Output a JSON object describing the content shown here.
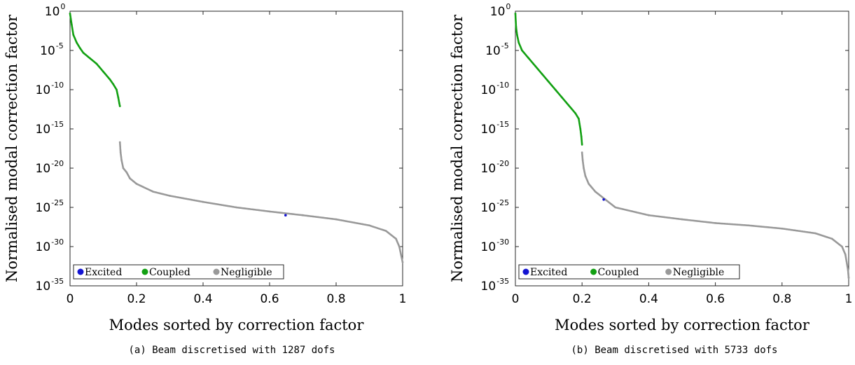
{
  "chart_data": [
    {
      "type": "scatter",
      "panel": "a",
      "caption": "(a) Beam discretised with 1287 dofs",
      "xlabel": "Modes sorted by correction factor",
      "ylabel": "Normalised modal correction factor",
      "xlim": [
        0,
        1
      ],
      "ylim_exponent": [
        -35,
        0
      ],
      "yscale": "log",
      "x_ticks": [
        "0",
        "0.2",
        "0.4",
        "0.6",
        "0.8",
        "1"
      ],
      "y_tick_base": "10",
      "y_tick_exponents": [
        "0",
        "-5",
        "-10",
        "-15",
        "-20",
        "-25",
        "-30",
        "-35"
      ],
      "legend_position": "bottom-left",
      "series": [
        {
          "name": "Excited",
          "color": "#1414d2",
          "points": [
            [
              0.648,
              1e-26
            ]
          ]
        },
        {
          "name": "Coupled",
          "color": "#12a012",
          "points": [
            [
              0.0,
              0.5
            ],
            [
              0.005,
              0.02
            ],
            [
              0.01,
              0.001
            ],
            [
              0.02,
              0.0001
            ],
            [
              0.03,
              2e-05
            ],
            [
              0.04,
              5e-06
            ],
            [
              0.06,
              1e-06
            ],
            [
              0.08,
              2e-07
            ],
            [
              0.1,
              2e-08
            ],
            [
              0.12,
              2e-09
            ],
            [
              0.13,
              5e-10
            ],
            [
              0.14,
              1e-10
            ],
            [
              0.145,
              1e-11
            ],
            [
              0.148,
              2e-12
            ],
            [
              0.15,
              8e-13
            ]
          ]
        },
        {
          "name": "Negligible",
          "color": "#999999",
          "points": [
            [
              0.15,
              2e-17
            ],
            [
              0.152,
              1e-18
            ],
            [
              0.155,
              1e-19
            ],
            [
              0.16,
              1e-20
            ],
            [
              0.17,
              3e-21
            ],
            [
              0.18,
              5e-22
            ],
            [
              0.2,
              1e-22
            ],
            [
              0.25,
              1e-23
            ],
            [
              0.3,
              3e-24
            ],
            [
              0.4,
              5e-25
            ],
            [
              0.5,
              1e-25
            ],
            [
              0.6,
              3e-26
            ],
            [
              0.7,
              1e-26
            ],
            [
              0.8,
              3e-27
            ],
            [
              0.9,
              5e-28
            ],
            [
              0.95,
              1e-28
            ],
            [
              0.98,
              1e-29
            ],
            [
              0.99,
              1e-30
            ],
            [
              1.0,
              1e-32
            ]
          ]
        }
      ]
    },
    {
      "type": "scatter",
      "panel": "b",
      "caption": "(b) Beam discretised with 5733 dofs",
      "xlabel": "Modes sorted by correction factor",
      "ylabel": "Normalised modal correction factor",
      "xlim": [
        0,
        1
      ],
      "ylim_exponent": [
        -35,
        0
      ],
      "yscale": "log",
      "x_ticks": [
        "0",
        "0.2",
        "0.4",
        "0.6",
        "0.8",
        "1"
      ],
      "y_tick_base": "10",
      "y_tick_exponents": [
        "0",
        "-5",
        "-10",
        "-15",
        "-20",
        "-25",
        "-30",
        "-35"
      ],
      "legend_position": "bottom-left",
      "series": [
        {
          "name": "Excited",
          "color": "#1414d2",
          "points": [
            [
              0.265,
              1e-24
            ]
          ]
        },
        {
          "name": "Coupled",
          "color": "#12a012",
          "points": [
            [
              0.0,
              0.5
            ],
            [
              0.002,
              0.01
            ],
            [
              0.005,
              0.001
            ],
            [
              0.01,
              0.0001
            ],
            [
              0.02,
              1e-05
            ],
            [
              0.04,
              1e-06
            ],
            [
              0.06,
              1e-07
            ],
            [
              0.08,
              1e-08
            ],
            [
              0.1,
              1e-09
            ],
            [
              0.12,
              1e-10
            ],
            [
              0.14,
              1e-11
            ],
            [
              0.16,
              1e-12
            ],
            [
              0.18,
              1e-13
            ],
            [
              0.19,
              2e-14
            ],
            [
              0.195,
              1e-15
            ],
            [
              0.198,
              1e-16
            ],
            [
              0.2,
              1e-17
            ]
          ]
        },
        {
          "name": "Negligible",
          "color": "#999999",
          "points": [
            [
              0.2,
              1e-18
            ],
            [
              0.202,
              1e-19
            ],
            [
              0.205,
              1e-20
            ],
            [
              0.21,
              1e-21
            ],
            [
              0.22,
              1e-22
            ],
            [
              0.24,
              1e-23
            ],
            [
              0.27,
              1e-24
            ],
            [
              0.3,
              1e-25
            ],
            [
              0.4,
              1e-26
            ],
            [
              0.5,
              3e-27
            ],
            [
              0.6,
              1e-27
            ],
            [
              0.7,
              5e-28
            ],
            [
              0.8,
              2e-28
            ],
            [
              0.9,
              5e-29
            ],
            [
              0.95,
              1e-29
            ],
            [
              0.98,
              1e-30
            ],
            [
              0.99,
              1e-31
            ],
            [
              0.998,
              1e-33
            ],
            [
              1.0,
              1e-34
            ]
          ]
        }
      ]
    }
  ]
}
